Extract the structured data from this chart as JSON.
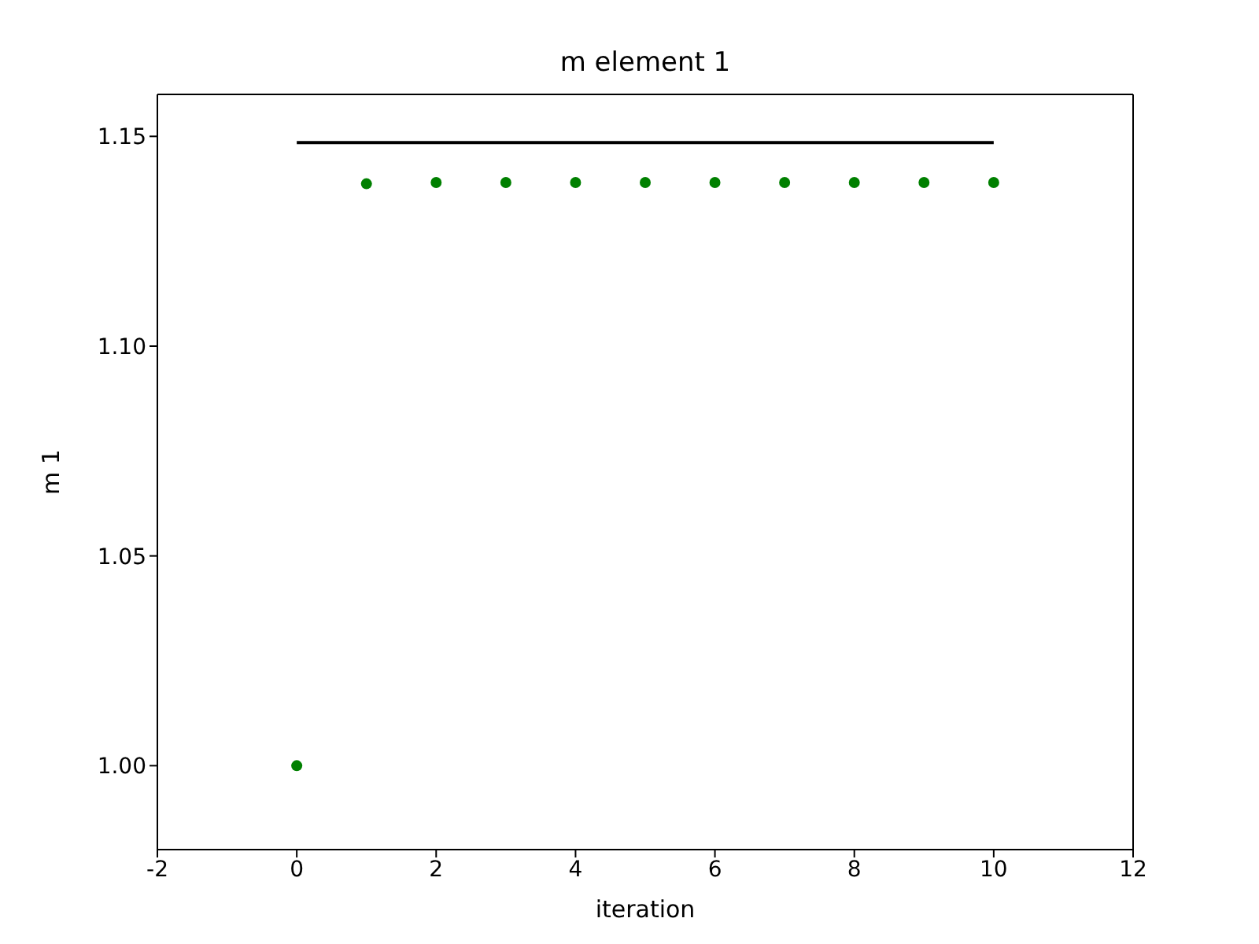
{
  "chart_data": {
    "type": "scatter",
    "title": "m element 1",
    "xlabel": "iteration",
    "ylabel": "m 1",
    "xlim": [
      -2,
      12
    ],
    "xticks": [
      -2,
      0,
      2,
      4,
      6,
      8,
      10,
      12
    ],
    "ylim": [
      0.98,
      1.16
    ],
    "yticks": [
      {
        "value": 1,
        "label": "1.00"
      },
      {
        "value": 1.05,
        "label": "1.05"
      },
      {
        "value": 1.1,
        "label": "1.10"
      },
      {
        "value": 1.15,
        "label": "1.15"
      }
    ],
    "marker": "circle",
    "series": [
      {
        "type": "line",
        "marker": "none",
        "color": "#000000",
        "x": [
          0,
          10
        ],
        "values": [
          1.1485,
          1.1485
        ]
      },
      {
        "color": "#008000",
        "x": [
          0,
          1,
          2,
          3,
          4,
          5,
          6,
          7,
          8,
          9,
          10
        ],
        "values": [
          1.0,
          1.1387,
          1.139,
          1.139,
          1.139,
          1.139,
          1.139,
          1.139,
          1.139,
          1.139,
          1.139
        ]
      }
    ]
  }
}
